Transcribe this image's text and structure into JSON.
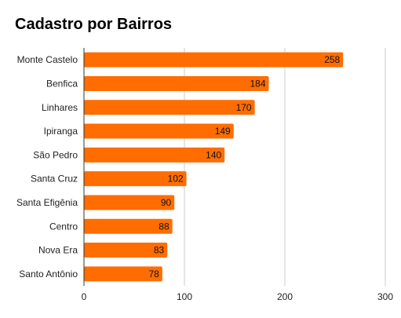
{
  "chart_data": {
    "type": "bar",
    "orientation": "horizontal",
    "title": "Cadastro por Bairros",
    "categories": [
      "Monte Castelo",
      "Benfica",
      "Linhares",
      "Ipiranga",
      "São Pedro",
      "Santa Cruz",
      "Santa Efigênia",
      "Centro",
      "Nova Era",
      "Santo Antônio"
    ],
    "values": [
      258,
      184,
      170,
      149,
      140,
      102,
      90,
      88,
      83,
      78
    ],
    "value_labels": [
      "258",
      "184",
      "170",
      "149",
      "140",
      "102",
      "90",
      "88",
      "83",
      "78"
    ],
    "xlim": [
      0,
      300
    ],
    "x_ticks": [
      0,
      100,
      200,
      300
    ],
    "x_tick_labels": [
      "0",
      "100",
      "200",
      "300"
    ],
    "grid": true,
    "legend": "none",
    "bar_color": "#FF6D01",
    "grid_color": "#CCCCCC"
  }
}
